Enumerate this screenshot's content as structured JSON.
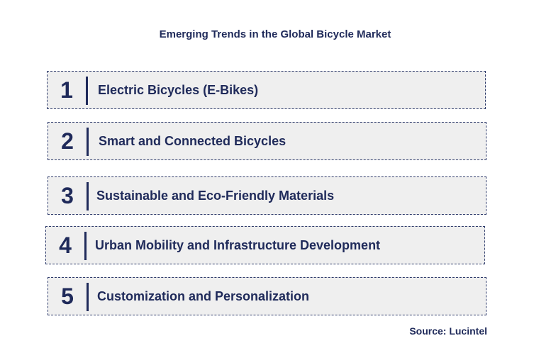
{
  "title": "Emerging Trends in the Global Bicycle Market",
  "trends": [
    {
      "number": "1",
      "label": "Electric Bicycles (E-Bikes)"
    },
    {
      "number": "2",
      "label": "Smart and Connected Bicycles"
    },
    {
      "number": "3",
      "label": "Sustainable and Eco-Friendly Materials"
    },
    {
      "number": "4",
      "label": "Urban Mobility and Infrastructure Development"
    },
    {
      "number": "5",
      "label": "Customization and Personalization"
    }
  ],
  "source": "Source: Lucintel",
  "colors": {
    "text": "#1f2a5a",
    "box_fill": "#efefef",
    "box_border": "#2e3b6b"
  }
}
